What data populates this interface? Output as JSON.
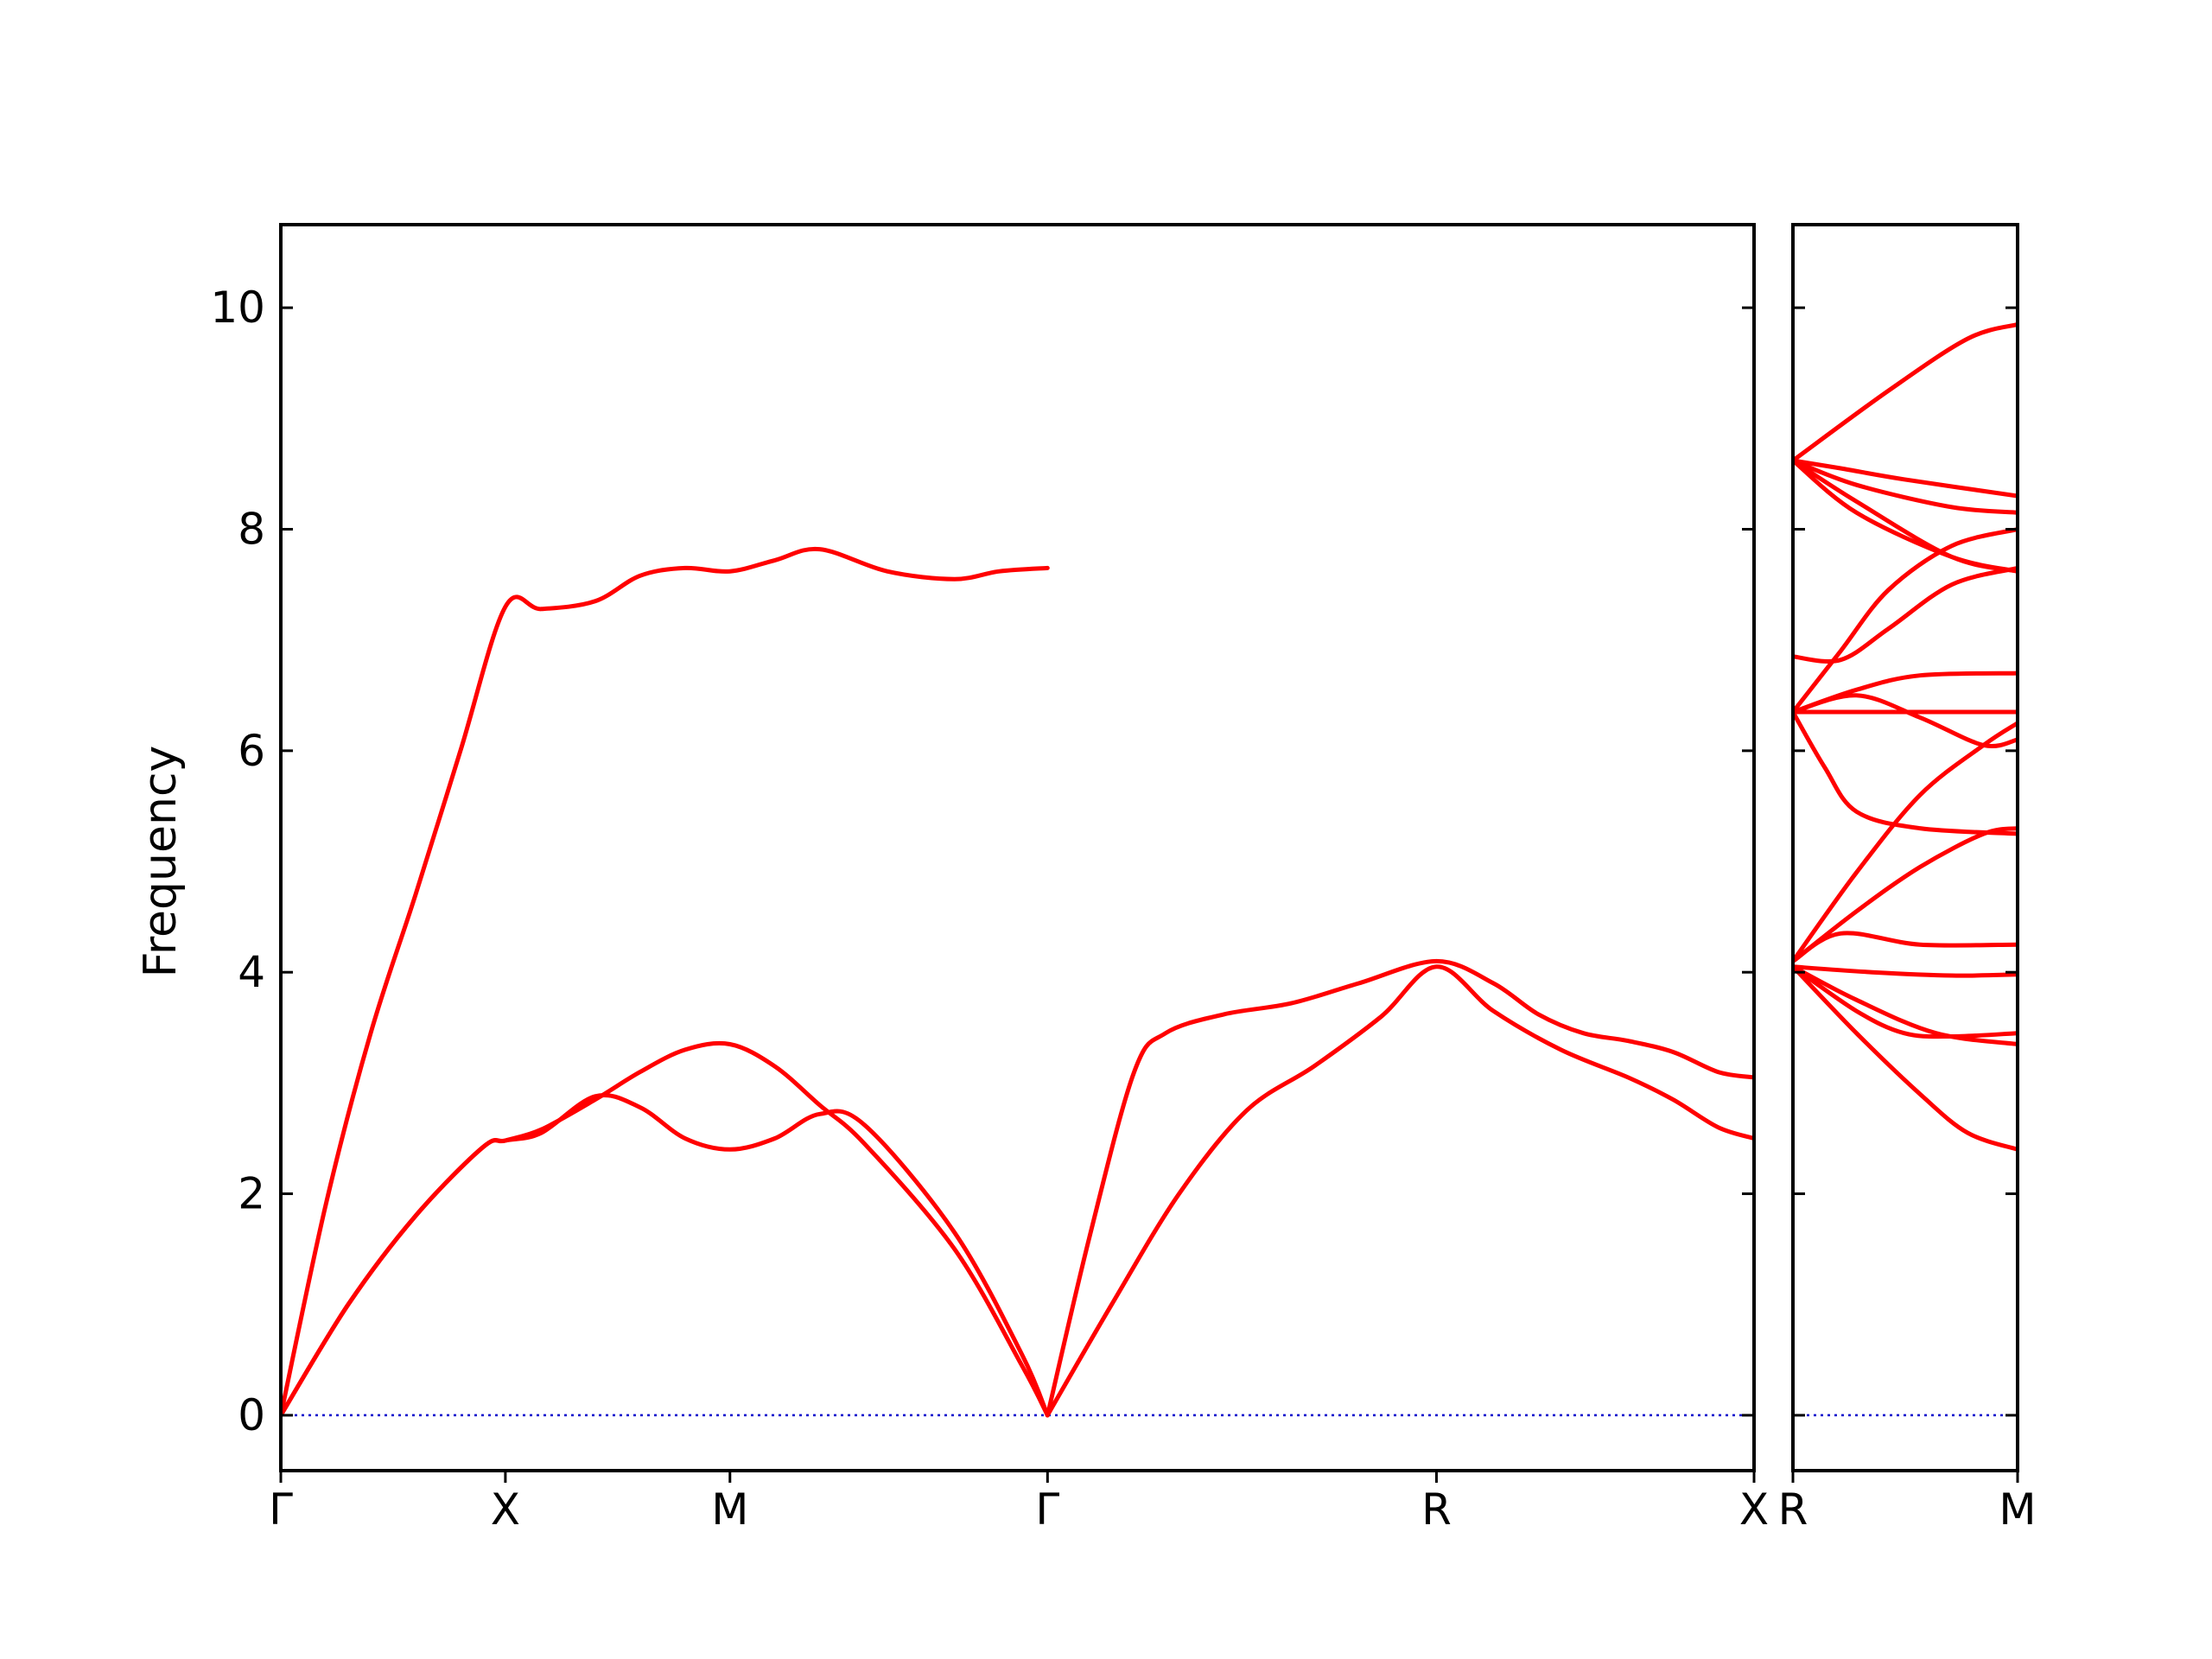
{
  "chart_data": {
    "type": "line",
    "ylabel": "Frequency",
    "ylim": [
      -0.5,
      10.75
    ],
    "yticks": [
      0,
      2,
      4,
      6,
      8,
      10
    ],
    "yticklabels": [
      "0",
      "2",
      "4",
      "6",
      "8",
      "10"
    ],
    "colors": {
      "bands": "#ff0000",
      "zero_line": "#0000cc"
    },
    "panels": [
      {
        "segments": [
          {
            "from": "Γ",
            "to": "X",
            "length": 0.5
          },
          {
            "from": "X",
            "to": "M",
            "length": 0.5
          },
          {
            "from": "M",
            "to": "Γ",
            "length": 0.7071
          },
          {
            "from": "Γ",
            "to": "R",
            "length": 0.866
          },
          {
            "from": "R",
            "to": "X",
            "length": 0.7071
          }
        ],
        "xticks": [
          {
            "pos": 0,
            "label": "Γ"
          },
          {
            "pos": 0.5,
            "label": "X"
          },
          {
            "pos": 1.0,
            "label": "M"
          },
          {
            "pos": 1.7071,
            "label": "Γ"
          },
          {
            "pos": 2.5731,
            "label": "R"
          },
          {
            "pos": 3.2802,
            "label": "X"
          }
        ],
        "bands": [
          [
            [
              0,
              0
            ],
            [
              0.15,
              1.0
            ],
            [
              0.3,
              1.8
            ],
            [
              0.45,
              2.42
            ],
            [
              0.5,
              2.48
            ],
            [
              0.58,
              2.55
            ],
            [
              0.7,
              2.88
            ],
            [
              0.8,
              2.78
            ],
            [
              0.9,
              2.5
            ],
            [
              1.0,
              2.4
            ],
            [
              1.1,
              2.5
            ],
            [
              1.2,
              2.72
            ],
            [
              1.3,
              2.62
            ],
            [
              1.5,
              1.65
            ],
            [
              1.65,
              0.55
            ],
            [
              1.7071,
              0
            ]
          ],
          [
            [
              0,
              0
            ],
            [
              0.15,
              1.0
            ],
            [
              0.3,
              1.8
            ],
            [
              0.45,
              2.42
            ],
            [
              0.5,
              2.48
            ],
            [
              0.58,
              2.58
            ],
            [
              0.7,
              2.85
            ],
            [
              0.8,
              3.1
            ],
            [
              0.9,
              3.3
            ],
            [
              1.0,
              3.35
            ],
            [
              1.1,
              3.15
            ],
            [
              1.2,
              2.8
            ],
            [
              1.3,
              2.45
            ],
            [
              1.5,
              1.5
            ],
            [
              1.65,
              0.45
            ],
            [
              1.7071,
              0
            ]
          ],
          [
            [
              0,
              0
            ],
            [
              0.1,
              1.9
            ],
            [
              0.2,
              3.45
            ],
            [
              0.3,
              4.7
            ],
            [
              0.4,
              6.0
            ],
            [
              0.5,
              7.3
            ],
            [
              0.58,
              7.28
            ],
            [
              0.7,
              7.35
            ],
            [
              0.8,
              7.58
            ],
            [
              0.9,
              7.65
            ],
            [
              1.0,
              7.62
            ],
            [
              1.1,
              7.72
            ],
            [
              1.2,
              7.82
            ],
            [
              1.35,
              7.62
            ],
            [
              1.5,
              7.55
            ],
            [
              1.6,
              7.62
            ],
            [
              1.7071,
              7.65
            ]
          ],
          [
            [
              1.7071,
              0
            ],
            [
              1.85,
              1.0
            ],
            [
              2.0,
              2.0
            ],
            [
              2.15,
              2.75
            ],
            [
              2.3,
              3.15
            ],
            [
              2.45,
              3.6
            ],
            [
              2.5731,
              4.05
            ],
            [
              2.7,
              3.65
            ],
            [
              2.85,
              3.3
            ],
            [
              3.0,
              3.05
            ],
            [
              3.1,
              2.85
            ],
            [
              3.2,
              2.6
            ],
            [
              3.2802,
              2.5
            ]
          ],
          [
            [
              1.7071,
              0
            ],
            [
              1.8,
              1.6
            ],
            [
              1.9,
              3.1
            ],
            [
              1.97,
              3.45
            ],
            [
              2.1,
              3.62
            ],
            [
              2.25,
              3.72
            ],
            [
              2.4,
              3.9
            ],
            [
              2.5731,
              4.1
            ],
            [
              2.7,
              3.9
            ],
            [
              2.8,
              3.62
            ],
            [
              2.9,
              3.45
            ],
            [
              3.0,
              3.38
            ],
            [
              3.1,
              3.28
            ],
            [
              3.2,
              3.1
            ],
            [
              3.2802,
              3.05
            ]
          ]
        ]
      },
      {
        "segments": [
          {
            "from": "R",
            "to": "M",
            "length": 0.7071
          }
        ],
        "xticks": [
          {
            "pos": 0,
            "label": "R"
          },
          {
            "pos": 0.7071,
            "label": "M"
          }
        ],
        "bands": [
          [
            [
              0,
              4.05
            ],
            [
              0.2,
              3.45
            ],
            [
              0.4,
              2.9
            ],
            [
              0.55,
              2.55
            ],
            [
              0.7071,
              2.4
            ]
          ],
          [
            [
              0,
              4.05
            ],
            [
              0.2,
              3.65
            ],
            [
              0.35,
              3.45
            ],
            [
              0.5,
              3.42
            ],
            [
              0.7071,
              3.45
            ]
          ],
          [
            [
              0,
              4.05
            ],
            [
              0.2,
              3.75
            ],
            [
              0.45,
              3.45
            ],
            [
              0.7071,
              3.35
            ]
          ],
          [
            [
              0,
              4.05
            ],
            [
              0.25,
              4.0
            ],
            [
              0.5,
              3.97
            ],
            [
              0.7071,
              3.98
            ]
          ],
          [
            [
              0,
              4.1
            ],
            [
              0.15,
              4.35
            ],
            [
              0.4,
              4.25
            ],
            [
              0.7071,
              4.25
            ]
          ],
          [
            [
              0,
              4.1
            ],
            [
              0.2,
              4.55
            ],
            [
              0.4,
              4.95
            ],
            [
              0.6,
              5.25
            ],
            [
              0.7071,
              5.3
            ]
          ],
          [
            [
              0,
              4.1
            ],
            [
              0.2,
              4.9
            ],
            [
              0.4,
              5.6
            ],
            [
              0.6,
              6.05
            ],
            [
              0.7071,
              6.25
            ]
          ],
          [
            [
              0,
              6.35
            ],
            [
              0.1,
              5.85
            ],
            [
              0.2,
              5.45
            ],
            [
              0.4,
              5.3
            ],
            [
              0.7071,
              5.25
            ]
          ],
          [
            [
              0,
              6.35
            ],
            [
              0.2,
              6.5
            ],
            [
              0.4,
              6.3
            ],
            [
              0.6,
              6.05
            ],
            [
              0.7071,
              6.1
            ]
          ],
          [
            [
              0,
              6.35
            ],
            [
              0.2,
              6.55
            ],
            [
              0.4,
              6.68
            ],
            [
              0.7071,
              6.7
            ]
          ],
          [
            [
              0,
              6.35
            ],
            [
              0.3,
              6.35
            ],
            [
              0.7071,
              6.35
            ]
          ],
          [
            [
              0,
              6.85
            ],
            [
              0.15,
              6.82
            ],
            [
              0.3,
              7.1
            ],
            [
              0.5,
              7.5
            ],
            [
              0.7071,
              7.65
            ]
          ],
          [
            [
              0,
              6.35
            ],
            [
              0.15,
              6.9
            ],
            [
              0.3,
              7.45
            ],
            [
              0.5,
              7.85
            ],
            [
              0.7071,
              8.0
            ]
          ],
          [
            [
              0,
              8.62
            ],
            [
              0.15,
              8.55
            ],
            [
              0.35,
              8.45
            ],
            [
              0.7071,
              8.3
            ]
          ],
          [
            [
              0,
              8.62
            ],
            [
              0.2,
              8.4
            ],
            [
              0.5,
              8.2
            ],
            [
              0.7071,
              8.15
            ]
          ],
          [
            [
              0,
              8.62
            ],
            [
              0.2,
              8.25
            ],
            [
              0.5,
              7.75
            ],
            [
              0.7071,
              7.62
            ]
          ],
          [
            [
              0,
              8.62
            ],
            [
              0.2,
              8.15
            ],
            [
              0.5,
              7.75
            ],
            [
              0.7071,
              7.62
            ]
          ],
          [
            [
              0,
              8.62
            ],
            [
              0.3,
              9.25
            ],
            [
              0.55,
              9.72
            ],
            [
              0.7071,
              9.85
            ]
          ]
        ]
      }
    ]
  }
}
